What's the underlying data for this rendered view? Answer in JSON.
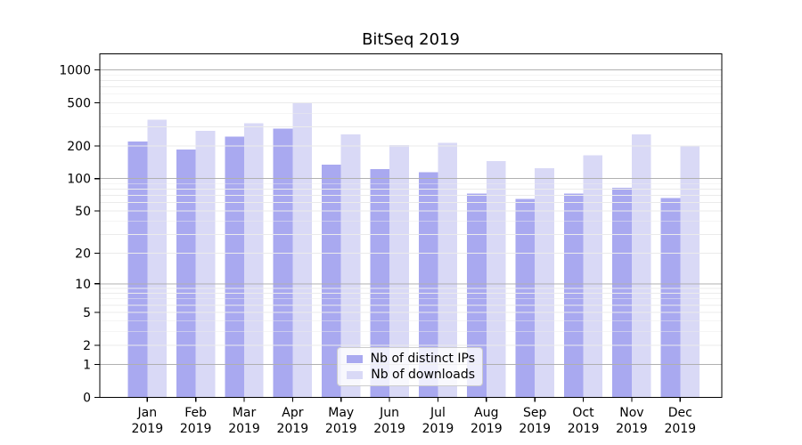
{
  "figure": {
    "title": "BitSeq 2019"
  },
  "legend": {
    "items": [
      {
        "label": "Nb of distinct IPs",
        "color": "#a9a9f0"
      },
      {
        "label": "Nb of downloads",
        "color": "#d9d9f6"
      }
    ]
  },
  "chart_data": {
    "type": "bar",
    "title": "BitSeq 2019",
    "categories": [
      "Jan",
      "Feb",
      "Mar",
      "Apr",
      "May",
      "Jun",
      "Jul",
      "Aug",
      "Sep",
      "Oct",
      "Nov",
      "Dec"
    ],
    "year_label": "2019",
    "series": [
      {
        "name": "Nb of distinct IPs",
        "color": "#a9a9f0",
        "values": [
          220,
          185,
          245,
          290,
          135,
          122,
          115,
          73,
          65,
          73,
          82,
          66
        ]
      },
      {
        "name": "Nb of downloads",
        "color": "#d9d9f6",
        "values": [
          350,
          275,
          325,
          500,
          255,
          205,
          215,
          145,
          125,
          165,
          255,
          200
        ]
      }
    ],
    "yscale": "log1p",
    "yticks": [
      0,
      1,
      2,
      5,
      10,
      20,
      50,
      100,
      200,
      500,
      1000
    ],
    "ylim": [
      0,
      1430
    ],
    "grid": {
      "orientation": "horizontal",
      "major": [
        1,
        10,
        100,
        1000
      ],
      "minor_multipliers": [
        2,
        3,
        4,
        5,
        6,
        7,
        8,
        9
      ]
    },
    "legend_position": "inside lower center"
  }
}
